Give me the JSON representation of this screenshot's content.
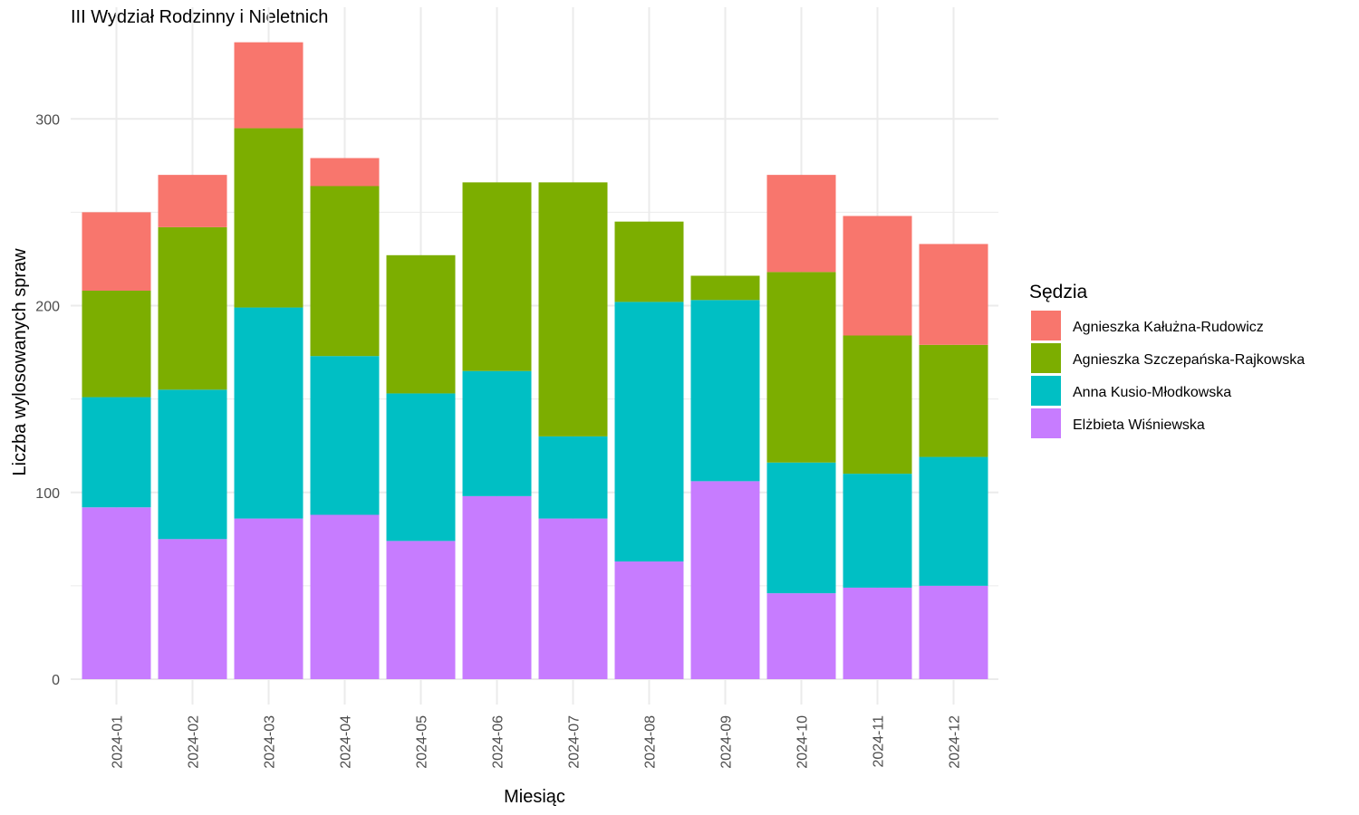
{
  "chart_data": {
    "type": "bar",
    "stacked": true,
    "title": "III Wydział Rodzinny i Nieletnich",
    "xlabel": "Miesiąc",
    "ylabel": "Liczba wylosowanych spraw",
    "ylim": [
      0,
      345
    ],
    "yticks": [
      0,
      100,
      200,
      300
    ],
    "grid": true,
    "legend_title": "Sędzia",
    "legend_position": "right",
    "categories": [
      "2024-01",
      "2024-02",
      "2024-03",
      "2024-04",
      "2024-05",
      "2024-06",
      "2024-07",
      "2024-08",
      "2024-09",
      "2024-10",
      "2024-11",
      "2024-12"
    ],
    "series": [
      {
        "name": "Elżbieta Wiśniewska",
        "color": "#C77CFF",
        "values": [
          92,
          75,
          86,
          88,
          74,
          98,
          86,
          63,
          106,
          46,
          49,
          50
        ]
      },
      {
        "name": "Anna Kusio-Młodkowska",
        "color": "#00BFC4",
        "values": [
          59,
          80,
          113,
          85,
          79,
          67,
          44,
          139,
          97,
          70,
          61,
          69
        ]
      },
      {
        "name": "Agnieszka Szczepańska-Rajkowska",
        "color": "#7CAE00",
        "values": [
          57,
          87,
          96,
          91,
          74,
          101,
          136,
          43,
          13,
          102,
          74,
          60
        ]
      },
      {
        "name": "Agnieszka Kałużna-Rudowicz",
        "color": "#F8766D",
        "values": [
          42,
          28,
          46,
          15,
          0,
          0,
          0,
          0,
          0,
          52,
          64,
          54
        ]
      }
    ],
    "legend_order": [
      "Agnieszka Kałużna-Rudowicz",
      "Agnieszka Szczepańska-Rajkowska",
      "Anna Kusio-Młodkowska",
      "Elżbieta Wiśniewska"
    ]
  }
}
